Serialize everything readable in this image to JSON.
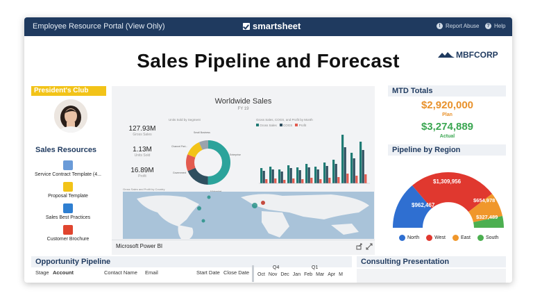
{
  "topbar": {
    "title": "Employee Resource Portal (View Only)",
    "kebab": "⋮",
    "brand": "smartsheet",
    "report_abuse": "Report Abuse",
    "help": "Help"
  },
  "page_title": "Sales Pipeline and Forecast",
  "corp_logo": "MBFCORP",
  "presidents_club": {
    "heading": "President's Club"
  },
  "sales_resources": {
    "heading": "Sales Resources",
    "items": [
      {
        "label": "Service Contract Template (4...",
        "icon": "document-icon",
        "color": "#6a9bd8"
      },
      {
        "label": "Proposal Template",
        "icon": "presentation-icon",
        "color": "#f2c318"
      },
      {
        "label": "Sales Best Practices",
        "icon": "link-icon",
        "color": "#2f7fd1"
      },
      {
        "label": "Customer Brochure",
        "icon": "pdf-icon",
        "color": "#e0452f"
      }
    ]
  },
  "powerbi": {
    "title": "Worldwide Sales",
    "subtitle": "FY 19",
    "kpis": [
      {
        "value": "127.93M",
        "label": "Gross Sales"
      },
      {
        "value": "1.13M",
        "label": "Units Sold"
      },
      {
        "value": "16.89M",
        "label": "Profit"
      }
    ],
    "donut_title": "Units Sold by Segment",
    "donut_labels": [
      "Small Business",
      "Channel Part...",
      "Government",
      "Enterprise",
      "Midmarket"
    ],
    "bar_title": "Gross Sales, COGS, and Profit by Month",
    "bar_legend": [
      "Gross Sales",
      "COGS",
      "Profit"
    ],
    "map_title": "Gross Sales and Profit by Country",
    "footer": "Microsoft Power BI",
    "share_icon": "share-icon",
    "expand_icon": "expand-icon"
  },
  "mtd": {
    "heading": "MTD Totals",
    "plan_value": "$2,920,000",
    "plan_label": "Plan",
    "actual_value": "$3,274,889",
    "actual_label": "Actual",
    "plan_color": "#e8912b",
    "actual_color": "#3aa651"
  },
  "pipeline_region": {
    "heading": "Pipeline by Region",
    "legend": [
      {
        "label": "North",
        "color": "#2f6fd1"
      },
      {
        "label": "West",
        "color": "#e0382f"
      },
      {
        "label": "East",
        "color": "#f0972b"
      },
      {
        "label": "South",
        "color": "#4caf50"
      }
    ],
    "values": [
      {
        "label": "$962,467",
        "color": "#2f6fd1"
      },
      {
        "label": "$1,309,956",
        "color": "#e0382f"
      },
      {
        "label": "$654,978",
        "color": "#f0972b"
      },
      {
        "label": "$327,489",
        "color": "#4caf50"
      }
    ]
  },
  "opportunity_pipeline": {
    "heading": "Opportunity Pipeline",
    "columns": [
      "Stage",
      "Account",
      "Contact Name",
      "Email",
      "Start Date",
      "Close Date"
    ],
    "gantt_quarters": [
      "Q4",
      "Q1"
    ],
    "gantt_months": [
      "Oct",
      "Nov",
      "Dec",
      "Jan",
      "Feb",
      "Mar",
      "Apr",
      "M"
    ]
  },
  "consulting": {
    "heading": "Consulting Presentation"
  }
}
